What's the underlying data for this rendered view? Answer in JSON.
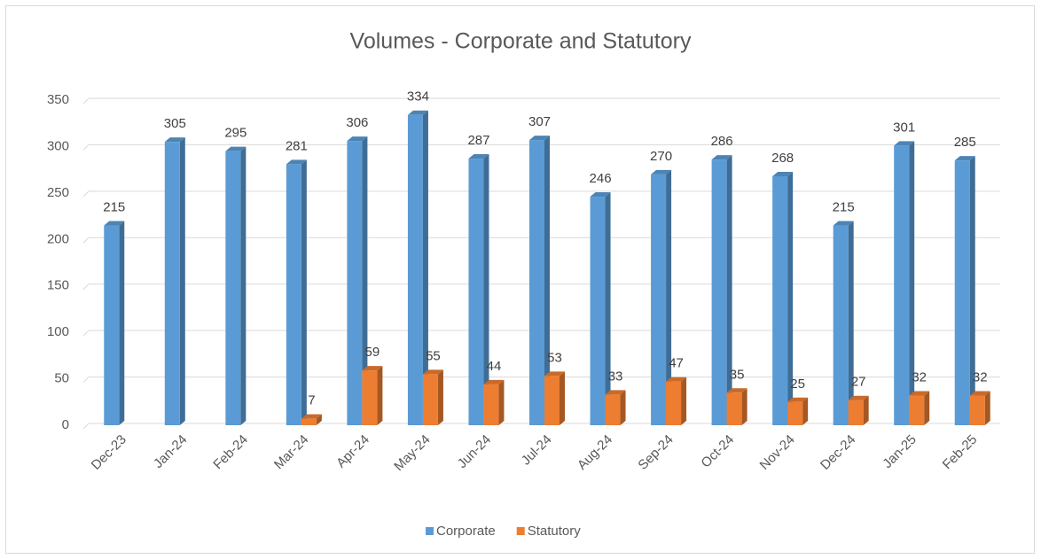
{
  "chart_data": {
    "type": "bar3d",
    "title": "Volumes - Corporate and Statutory",
    "categories": [
      "Dec-23",
      "Jan-24",
      "Feb-24",
      "Mar-24",
      "Apr-24",
      "May-24",
      "Jun-24",
      "Jul-24",
      "Aug-24",
      "Sep-24",
      "Oct-24",
      "Nov-24",
      "Dec-24",
      "Jan-25",
      "Feb-25"
    ],
    "series": [
      {
        "name": "Corporate",
        "color": "#5b9bd5",
        "values": [
          215,
          305,
          295,
          281,
          306,
          334,
          287,
          307,
          246,
          270,
          286,
          268,
          215,
          301,
          285
        ]
      },
      {
        "name": "Statutory",
        "color": "#ed7d31",
        "values": [
          null,
          null,
          null,
          7,
          59,
          55,
          44,
          53,
          33,
          47,
          35,
          25,
          27,
          32,
          32
        ]
      }
    ],
    "ylim": [
      0,
      350
    ],
    "yticks": [
      0,
      50,
      100,
      150,
      200,
      250,
      300,
      350
    ],
    "grid": true,
    "legend": "bottom"
  }
}
